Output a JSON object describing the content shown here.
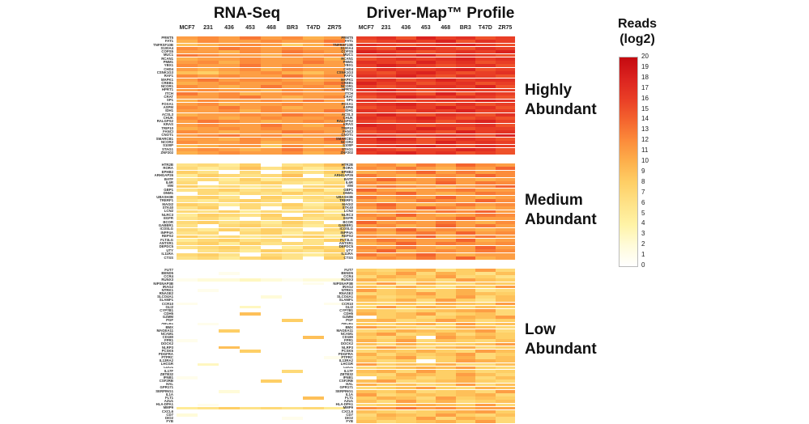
{
  "titles": {
    "left": "RNA-Seq",
    "right": "Driver-Map™ Profile"
  },
  "legend": {
    "title_line1": "Reads",
    "title_line2": "(log2)",
    "ticks": [
      20,
      19,
      18,
      17,
      16,
      15,
      14,
      13,
      12,
      11,
      10,
      9,
      8,
      7,
      6,
      5,
      4,
      3,
      2,
      1,
      0
    ]
  },
  "chart_data": {
    "type": "heatmap",
    "panels": [
      "RNA-Seq",
      "Driver-Map Profile"
    ],
    "columns": [
      "MCF7",
      "231",
      "436",
      "453",
      "468",
      "BR3",
      "T47D",
      "ZR75"
    ],
    "value_scale": {
      "min": 0,
      "max": 20,
      "label": "Reads (log2)"
    },
    "encoding": "each row string: one char per column; value 0-20 encoded as 0123456789ABCDEFGHIJK",
    "color_stops": [
      {
        "v": 0,
        "c": "#FFFFFF"
      },
      {
        "v": 2,
        "c": "#FFFBD9"
      },
      {
        "v": 4,
        "c": "#FFF3A6"
      },
      {
        "v": 6,
        "c": "#FEE288"
      },
      {
        "v": 8,
        "c": "#FECF66"
      },
      {
        "v": 10,
        "c": "#FDB04C"
      },
      {
        "v": 12,
        "c": "#FC8C3B"
      },
      {
        "v": 14,
        "c": "#F4642E"
      },
      {
        "v": 16,
        "c": "#E93E26"
      },
      {
        "v": 18,
        "c": "#DB231F"
      },
      {
        "v": 20,
        "c": "#C40A10"
      }
    ],
    "groups": [
      {
        "label": "Highly Abundant",
        "genes": [
          "PRMT5",
          "FAT1",
          "TNFRSF10B",
          "S100A4",
          "COPS5",
          "MUC1",
          "RCAN1",
          "PMM1",
          "YBX1",
          "CHD4",
          "CSNK1G3",
          "RAF1",
          "MAPK1",
          "CREB1",
          "NCOR1",
          "HPRT1",
          "ITCH",
          "CRAT",
          "SP1",
          "FOXA1",
          "ASPM",
          "IDH1",
          "ACSL3",
          "CHUK",
          "RALGPS2",
          "KRAS",
          "TRIP10",
          "FANCI",
          "CNOT1",
          "SMARCB1",
          "NCOR2",
          "S100P",
          "STAG1",
          "ZNF202"
        ],
        "rnaseq": [
          "BCBDBCAB",
          "ACBBCBBD",
          "9ABCB8AC",
          "CBDCBCBB",
          "BBACBDCB",
          "DCBBACBC",
          "ABBCBBCA",
          "BCACBBDB",
          "CBBDBCBB",
          "BABCACBB",
          "98ABCA9B",
          "CBCBBDBC",
          "BDBCCBAB",
          "ABCBBCBD",
          "CBABDBCB",
          "BCBBACBC",
          "DBCABCBB",
          "BBCDBABC",
          "ACBBCBDB",
          "BCABBCBB",
          "CBDBCABB",
          "BBCACBBD",
          "ABBCBDCB",
          "CBABCBBC",
          "BDCBABCB",
          "BCBBDBAC",
          "ABCBCBBB",
          "CBABBDCB",
          "BCDBCABB",
          "BBACBCBD",
          "CBBCABBC",
          "9ABB8CA9",
          "BCBABDBC",
          "ABCBBCAB"
        ],
        "drivermap": [
          "GHFIGHFG",
          "FGHGIFHG",
          "HGFGHIGF",
          "GFIHGFHG",
          "IHGFGHGI",
          "GHGIFHGF",
          "FGHGHIGH",
          "HGFIGHFG",
          "GIHGFGHF",
          "FHGGHIFG",
          "GFHIGFGH",
          "HGIGFHGF",
          "GHFGIGHH",
          "IGHFGHFG",
          "GFGHHGIF",
          "HIGFGHGG",
          "GHGFIFHG",
          "FGIHGHGF",
          "HGFGHGIH",
          "GHIGFHFG",
          "FGHGIGHF",
          "HGFHGIGG",
          "GIGFHGFH",
          "HGHIGFGF",
          "GFGHFHIG",
          "IHGFGGHF",
          "GHGIHFGG",
          "FGHGFIGH",
          "HGFGHGFI",
          "GIHFGHGF",
          "GHGFIGHG",
          "FGHIGFHG",
          "HGFGGIHF",
          "GHIGHFGF"
        ]
      },
      {
        "label": "Medium Abundant",
        "genes": [
          "HTR2B",
          "RORA",
          "EPHB2",
          "ARHGAP26",
          "BATF",
          "IL6R",
          "VIM",
          "GBP1",
          "DNM1",
          "UBASH3B",
          "TRERF1",
          "MAGI2",
          "STK40",
          "LCN2",
          "NLRC3",
          "EGFR",
          "BCOR",
          "GABBR1",
          "ICOSLG",
          "INPP4A",
          "REPS2",
          "FLT3LG",
          "ANTXR1",
          "DEPDC5",
          "UTY",
          "IL11RA",
          "CTSS"
        ],
        "rnaseq": [
          "67580679",
          "75696857",
          "86070768",
          "58767906",
          "67585776",
          "70678657",
          "86756078",
          "67867585",
          "07576867",
          "78608576",
          "65787067",
          "87576857",
          "68070768",
          "76857685",
          "58768076",
          "67507867",
          "78675860",
          "60786757",
          "75868607",
          "67078576",
          "86756785",
          "57867068",
          "78586760",
          "67860587",
          "06758768",
          "78607657",
          "67578608"
        ],
        "drivermap": [
          "BCADBECB",
          "CBDBACBE",
          "ABCEBDBC",
          "DBABCBEC",
          "BECBDBAB",
          "CBABEBDC",
          "BDCBABCE",
          "EBABCDBB",
          "BCEBABDC",
          "DBCBEBAB",
          "BABDCBEC",
          "CEBABDBC",
          "BDBECBAB",
          "ABCBDCEB",
          "CBEBABDC",
          "BDABCEBB",
          "EBCBDBAC",
          "BCABEBDB",
          "DBEBCBAB",
          "BACDBEBC",
          "CBBEABDB",
          "BDCBBEAB",
          "ABEBDCBC",
          "CBDBABEB",
          "BEABCBDC",
          "DBCEBABB",
          "BCBDBEAB"
        ]
      },
      {
        "label": "Low Abundant",
        "genes": [
          "FUT7",
          "BEND5",
          "CCR4",
          "RUNX3",
          "NIPSNAP3B",
          "IRAG2",
          "NTRK1",
          "RNASE2",
          "SLCO4A1",
          "SLAMF1",
          "CCR10",
          "GLI2",
          "CYP7B1",
          "CDH5",
          "GZMM",
          "PGF",
          "ABCB1",
          "BMX",
          "MAGEA11",
          "NCAM1",
          "CD180",
          "FPR1",
          "DOCK2",
          "NLRP3",
          "PCSK5",
          "PDGFRA",
          "PTPRC",
          "IL13RA2",
          "LHCGR",
          "CDO1",
          "IL17F",
          "ZBTB32",
          "IFNB1",
          "CSF2RB",
          "HAL",
          "GPR171",
          "SERPING1",
          "IL1A",
          "FLT1",
          "AZU1",
          "HLA-DPA1",
          "MMP9",
          "CXCL6",
          "CD7",
          "DIO2",
          "FYB"
        ],
        "rnaseq": [
          "00000000",
          "00100000",
          "00000000",
          "12232122",
          "00000010",
          "00000000",
          "01000000",
          "00000000",
          "00002000",
          "00000000",
          "10000001",
          "00030000",
          "00000000",
          "00090000",
          "00000000",
          "00000800",
          "01000000",
          "00000000",
          "00800000",
          "00000000",
          "00000090",
          "10000000",
          "00000000",
          "00900000",
          "00080000",
          "00000000",
          "00000001",
          "00000000",
          "03000000",
          "00000000",
          "00000700",
          "00000000",
          "10000000",
          "00008000",
          "00000000",
          "00000000",
          "00200000",
          "00000000",
          "00000090",
          "00000000",
          "01000000",
          "56867675",
          "00000000",
          "20000000",
          "00000100",
          "00000000"
        ],
        "drivermap": [
          "879A68B7",
          "98B7A869",
          "7A98B786",
          "A8797B98",
          "8B6A8798",
          "97A8698B",
          "B8978A67",
          "789B8A98",
          "A7898B79",
          "98A7B869",
          "8797A98B",
          "7B8A9798",
          "98789AB7",
          "A89B7897",
          "08978A9B",
          "9A78B978",
          "879A7B89",
          "B9878A97",
          "78A989B7",
          "9B78A798",
          "8790B9A8",
          "A8B79879",
          "97A8789B",
          "8B979A78",
          "798A87B9",
          "A7989B78",
          "89B78A79",
          "97808BA9",
          "B898A779",
          "789A9B87",
          "9A7B8978",
          "87A98B97",
          "08978A79",
          "9B789A87",
          "A8978B79",
          "789B87A9",
          "98A7897B",
          "B78989A7",
          "8A97B898",
          "97B8A789",
          "789A98B7",
          "CBDBCABB",
          "98789AB8",
          "7A98B879",
          "898B7A97",
          "9789A8B7"
        ]
      }
    ]
  }
}
